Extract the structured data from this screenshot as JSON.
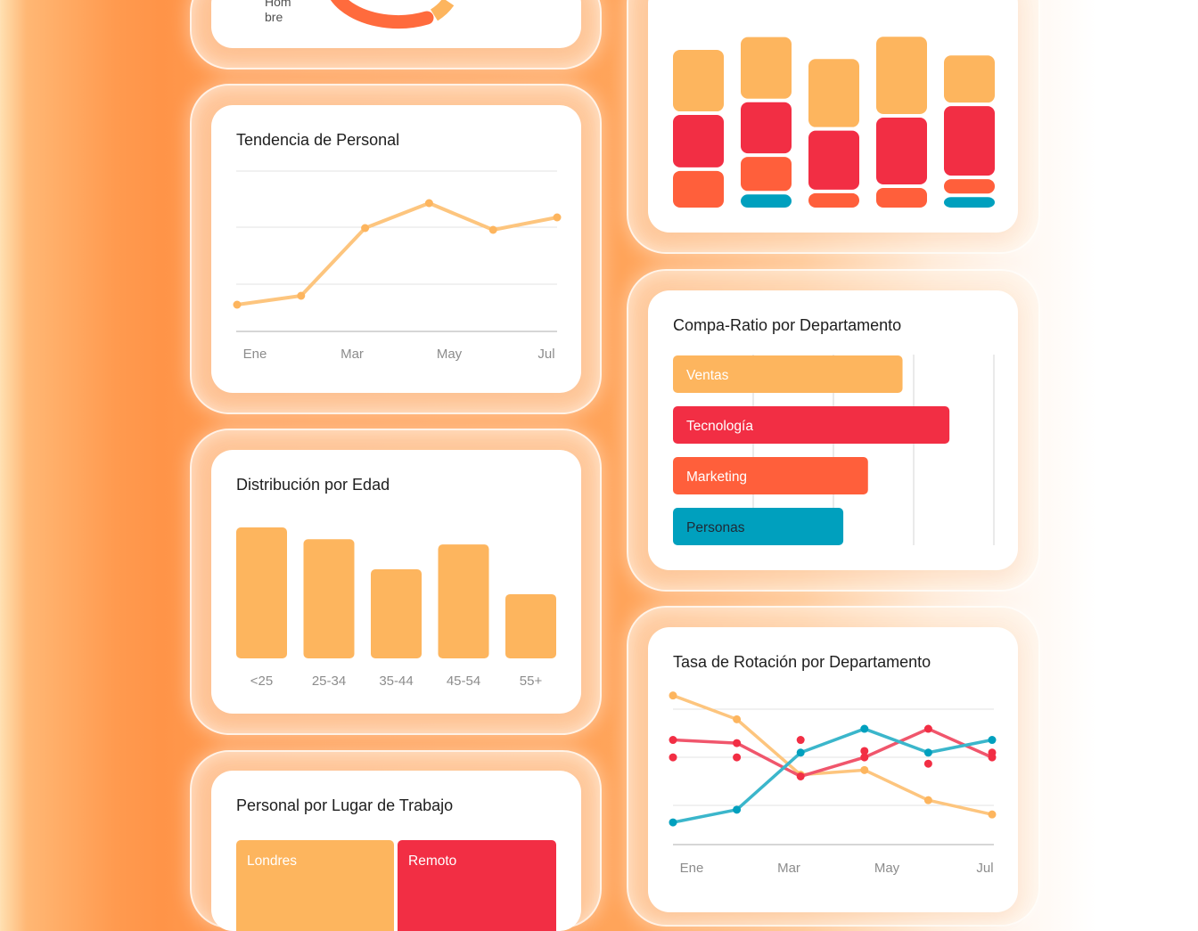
{
  "colors": {
    "orange_light": "#fdb55e",
    "red": "#f22e44",
    "orange": "#ff5f3b",
    "teal": "#00a0be",
    "grid": "#e3e3e3",
    "tick": "#8c8c8c"
  },
  "cards": {
    "gender_donut": {
      "legend_lines": [
        "Hom",
        "bre"
      ]
    },
    "staff_trend": {
      "title": "Tendencia de Personal"
    },
    "stacked_bars": {
      "title": ""
    },
    "compa_ratio": {
      "title": "Compa-Ratio por Departamento"
    },
    "age_distribution": {
      "title": "Distribución por Edad"
    },
    "turnover": {
      "title": "Tasa de Rotación por Departamento"
    },
    "workplace": {
      "title": "Personal por Lugar de Trabajo"
    }
  },
  "chart_data": [
    {
      "id": "gender_donut",
      "type": "pie",
      "labels": [
        "Hombre"
      ],
      "partially_visible": true
    },
    {
      "id": "staff_trend",
      "type": "line",
      "title": "Tendencia de Personal",
      "x_ticks": [
        "Ene",
        "Mar",
        "May",
        "Jul"
      ],
      "values": [
        15,
        20,
        58,
        72,
        57,
        64
      ],
      "ylim": [
        0,
        90
      ],
      "grid": true
    },
    {
      "id": "stacked_bars",
      "type": "bar",
      "stacked": true,
      "stack_order_bottom_to_top": [
        "orange",
        "red",
        "orange_light"
      ],
      "series": [
        {
          "color": "teal",
          "values": [
            0,
            10,
            0,
            0,
            8
          ]
        },
        {
          "color": "orange",
          "values": [
            28,
            26,
            11,
            15,
            11
          ]
        },
        {
          "color": "red",
          "values": [
            40,
            39,
            45,
            51,
            53
          ]
        },
        {
          "color": "orange_light",
          "values": [
            47,
            47,
            52,
            59,
            36
          ]
        }
      ]
    },
    {
      "id": "compa_ratio",
      "type": "bar",
      "orientation": "horizontal",
      "title": "Compa-Ratio por Departamento",
      "categories": [
        "Ventas",
        "Tecnología",
        "Marketing",
        "Personas"
      ],
      "values": [
        0.93,
        1.12,
        0.79,
        0.69
      ],
      "xlim": [
        0,
        1.3
      ],
      "grid": true
    },
    {
      "id": "age_distribution",
      "type": "bar",
      "title": "Distribución por Edad",
      "categories": [
        "<25",
        "25-34",
        "35-44",
        "45-54",
        "55+"
      ],
      "values": [
        100,
        91,
        68,
        87,
        49
      ]
    },
    {
      "id": "turnover",
      "type": "line",
      "title": "Tasa de Rotación por Departamento",
      "x_ticks": [
        "Ene",
        "Mar",
        "May",
        "Jul"
      ],
      "ylim": [
        0,
        100
      ],
      "grid": true,
      "series": [
        {
          "color": "orange_light",
          "values": [
            94,
            79,
            44,
            47,
            28,
            19
          ]
        },
        {
          "color": "red",
          "values": [
            66,
            64,
            43,
            55,
            73,
            55
          ]
        },
        {
          "color": "teal",
          "values": [
            14,
            22,
            58,
            73,
            58,
            66
          ]
        },
        {
          "color": "red",
          "markers_only": true,
          "values": [
            55,
            55,
            66,
            59,
            51,
            58
          ]
        }
      ]
    },
    {
      "id": "workplace",
      "type": "bar",
      "title": "Personal por Lugar de Trabajo",
      "categories": [
        "Londres",
        "Remoto"
      ],
      "colors": [
        "orange_light",
        "red"
      ],
      "partially_visible": true
    }
  ]
}
